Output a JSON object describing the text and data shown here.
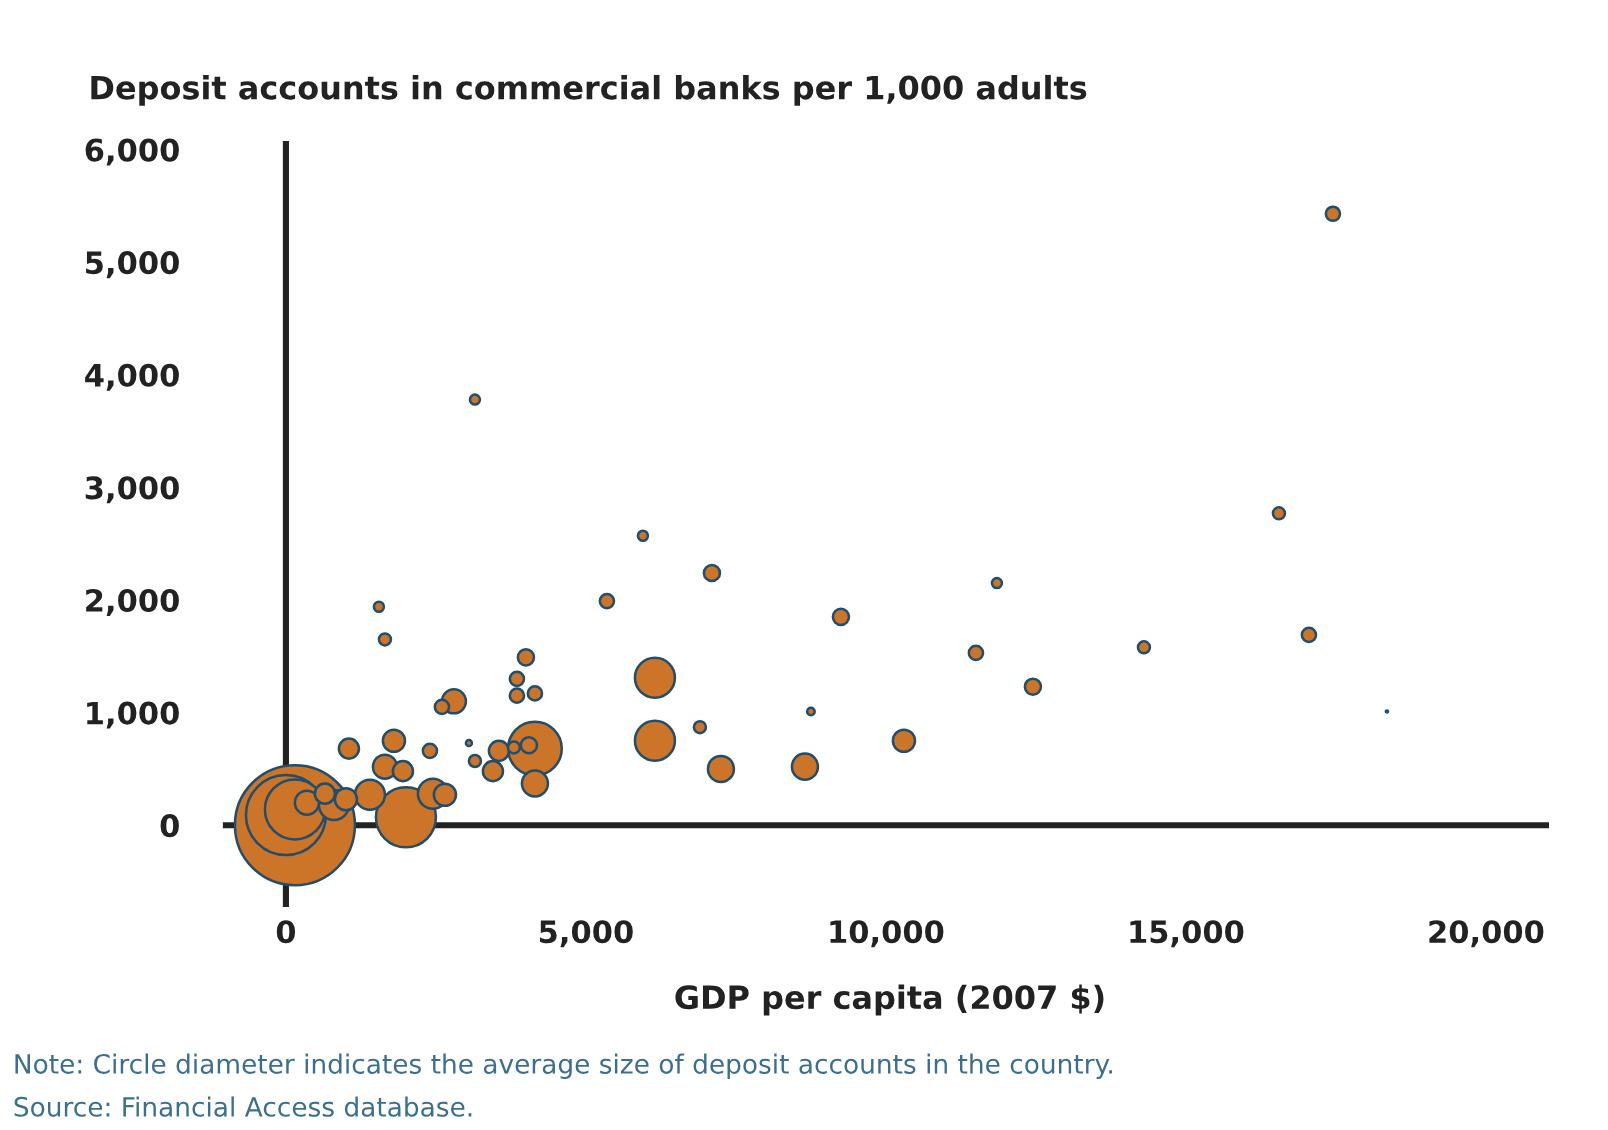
{
  "chart_data": {
    "type": "bubble",
    "ylabel": "Deposit accounts in commercial banks per 1,000 adults",
    "xlabel": "GDP per capita (2007 $)",
    "annotations": [
      "Note: Circle diameter indicates the average size of deposit accounts in the country.",
      "Source: Financial Access database."
    ],
    "x": [
      17450,
      3150,
      5950,
      7100,
      5350,
      9250,
      11850,
      11500,
      12450,
      8750,
      6150,
      6150,
      6900,
      7250,
      8650,
      10300,
      16550,
      14300,
      17050,
      18350,
      1550,
      1650,
      4000,
      3850,
      3850,
      4150,
      2800,
      2600,
      1050,
      1800,
      2400,
      3050,
      3150,
      3450,
      3550,
      3800,
      4050,
      4150,
      4150,
      1650,
      1950,
      2000,
      2450,
      2650,
      150,
      0,
      150,
      800,
      350,
      650,
      1000,
      1400
    ],
    "values": [
      5430,
      3780,
      2570,
      2240,
      1990,
      1850,
      2150,
      1530,
      1230,
      1010,
      1310,
      750,
      870,
      500,
      520,
      750,
      2770,
      1580,
      1690,
      1010,
      1940,
      1650,
      1490,
      1300,
      1150,
      1170,
      1100,
      1050,
      680,
      750,
      660,
      730,
      570,
      480,
      660,
      690,
      710,
      680,
      370,
      520,
      480,
      70,
      280,
      270,
      0,
      90,
      140,
      180,
      200,
      280,
      230,
      270
    ],
    "sizes": [
      0.014,
      0.007,
      0.007,
      0.018,
      0.014,
      0.018,
      0.007,
      0.014,
      0.018,
      0.004,
      0.111,
      0.111,
      0.01,
      0.047,
      0.047,
      0.034,
      0.01,
      0.01,
      0.014,
      0.0003,
      0.007,
      0.01,
      0.018,
      0.014,
      0.014,
      0.014,
      0.04,
      0.014,
      0.028,
      0.034,
      0.014,
      0.0025,
      0.01,
      0.028,
      0.028,
      0.01,
      0.018,
      0.2,
      0.047,
      0.04,
      0.028,
      0.25,
      0.0625,
      0.034,
      1,
      0.444,
      0.25,
      0.0625,
      0.04,
      0.028,
      0.034,
      0.0625
    ],
    "color": "#cc7428",
    "xlim": [
      -1000,
      21000
    ],
    "ylim": [
      -700,
      6050
    ],
    "xticks": [
      0,
      {
        "value": 5000,
        "label": "5,000"
      },
      {
        "value": 10000,
        "label": "10,000"
      },
      {
        "value": 15000,
        "label": "15,000"
      },
      {
        "value": 20000,
        "label": "20,000"
      }
    ],
    "yticks": [
      0,
      {
        "value": 1000,
        "label": "1,000"
      },
      {
        "value": 2000,
        "label": "2,000"
      },
      {
        "value": 3000,
        "label": "3,000"
      },
      {
        "value": 4000,
        "label": "4,000"
      },
      {
        "value": 5000,
        "label": "5,000"
      },
      {
        "value": 6000,
        "label": "6,000"
      }
    ],
    "legend": false
  }
}
